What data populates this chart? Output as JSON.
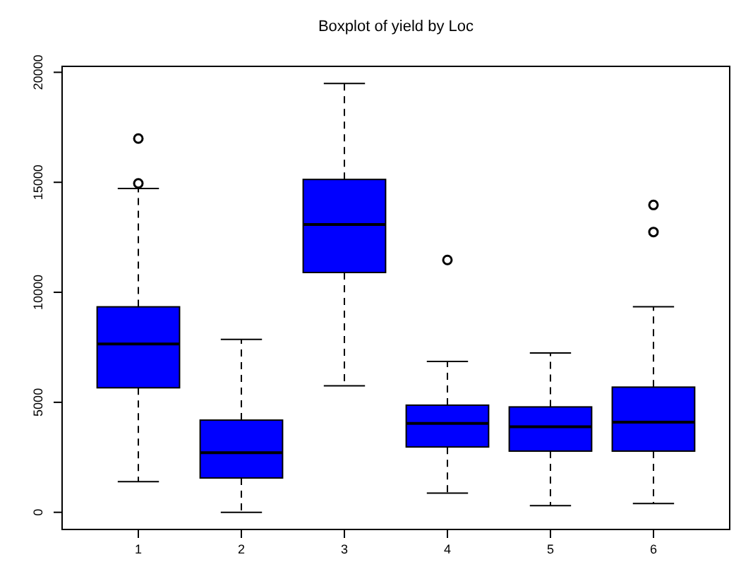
{
  "chart_data": {
    "type": "box",
    "title": "Boxplot of yield by Loc",
    "categories": [
      "1",
      "2",
      "3",
      "4",
      "5",
      "6"
    ],
    "color": "#0000ff",
    "ylim": [
      -780,
      20270
    ],
    "yticks": [
      0,
      5000,
      10000,
      15000,
      20000
    ],
    "grid": false,
    "boxes": [
      {
        "low": 1390,
        "q1": 5660,
        "median": 7650,
        "q3": 9340,
        "high": 14720,
        "outliers": [
          14950,
          16990
        ]
      },
      {
        "low": 0,
        "q1": 1560,
        "median": 2710,
        "q3": 4190,
        "high": 7860
      },
      {
        "low": 5750,
        "q1": 10900,
        "median": 13080,
        "q3": 15130,
        "high": 19490
      },
      {
        "low": 870,
        "q1": 2970,
        "median": 4040,
        "q3": 4870,
        "high": 6860,
        "outliers": [
          11470
        ]
      },
      {
        "low": 300,
        "q1": 2780,
        "median": 3890,
        "q3": 4790,
        "high": 7240
      },
      {
        "low": 400,
        "q1": 2780,
        "median": 4100,
        "q3": 5690,
        "high": 9340,
        "outliers": [
          12740,
          13970
        ]
      }
    ]
  }
}
